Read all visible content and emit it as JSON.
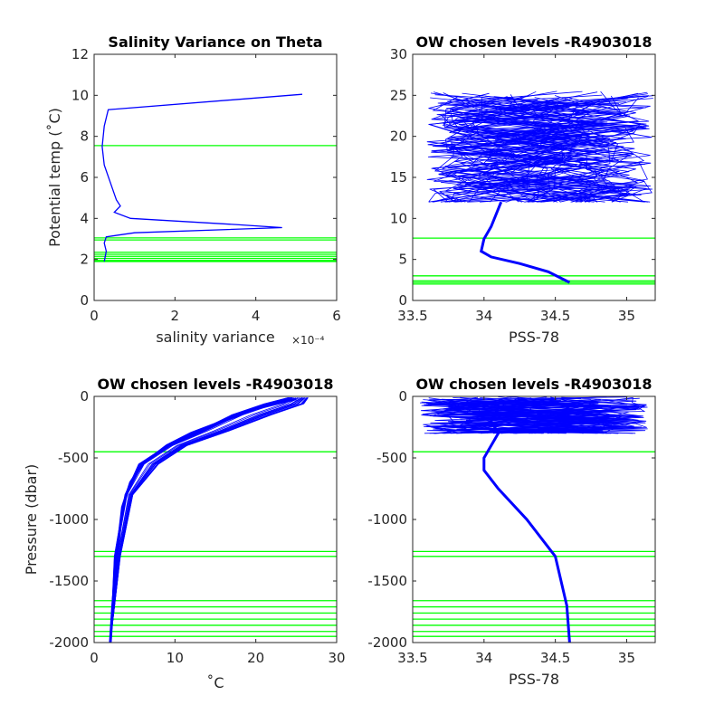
{
  "chart_data": [
    {
      "type": "line",
      "title": "Salinity Variance on Theta",
      "xlabel": "salinity variance",
      "xlabel_exponent": "×10⁻⁴",
      "ylabel": "Potential temp (˚C)",
      "xlim": [
        0,
        6
      ],
      "ylim": [
        0,
        12
      ],
      "xticks": [
        "0",
        "2",
        "4",
        "6"
      ],
      "yticks": [
        "0",
        "2",
        "4",
        "6",
        "8",
        "10",
        "12"
      ],
      "series_color": "#0000ff",
      "level_color": "#00ff00",
      "series": [
        {
          "x": [
            5.15,
            0.35,
            0.25,
            0.2,
            0.25,
            0.55,
            0.65,
            0.5,
            0.9,
            3.5,
            4.65,
            1.0,
            0.3,
            0.25,
            0.3,
            0.25
          ],
          "y": [
            10.05,
            9.3,
            8.5,
            7.5,
            6.6,
            4.9,
            4.6,
            4.3,
            4.0,
            3.7,
            3.55,
            3.3,
            3.1,
            2.8,
            2.4,
            1.9
          ]
        }
      ],
      "levels": [
        7.55,
        3.05,
        2.95,
        2.35,
        2.25,
        2.15,
        2.05,
        1.95,
        1.9
      ]
    },
    {
      "type": "line",
      "title": "OW chosen levels -R4903018",
      "xlabel": "PSS-78",
      "ylabel": "",
      "xlim": [
        33.5,
        35.2
      ],
      "ylim": [
        0,
        30
      ],
      "xticks": [
        "33.5",
        "34",
        "34.5",
        "35"
      ],
      "yticks": [
        "0",
        "5",
        "10",
        "15",
        "20",
        "25",
        "30"
      ],
      "series_color": "#0000ff",
      "level_color": "#00ff00",
      "series": [
        {
          "x": [
            34.6,
            34.45,
            34.25,
            34.05,
            33.98,
            34.0,
            34.05,
            34.12
          ],
          "y": [
            2.2,
            3.5,
            4.5,
            5.3,
            6.0,
            7.5,
            9.0,
            12.0
          ]
        }
      ],
      "levels": [
        7.6,
        3.0,
        2.4,
        2.2,
        2.0
      ]
    },
    {
      "type": "line",
      "title": "OW chosen levels -R4903018",
      "xlabel": "˚C",
      "ylabel": "Pressure (dbar)",
      "xlim": [
        0,
        30
      ],
      "ylim": [
        -2000,
        0
      ],
      "xticks": [
        "0",
        "10",
        "20",
        "30"
      ],
      "yticks": [
        "-2000",
        "-1500",
        "-1000",
        "-500",
        "0"
      ],
      "series_color": "#0000ff",
      "level_color": "#00ff00",
      "series": [
        {
          "x": [
            2.0,
            2.3,
            2.8,
            3.5,
            4.5,
            6.0,
            9.0,
            12.0,
            16.0,
            20.0,
            25.0
          ],
          "y": [
            -2000,
            -1700,
            -1300,
            -900,
            -700,
            -550,
            -400,
            -300,
            -200,
            -100,
            -20
          ]
        }
      ],
      "levels": [
        -450,
        -1260,
        -1300,
        -1660,
        -1710,
        -1760,
        -1810,
        -1860,
        -1910,
        -1950
      ]
    },
    {
      "type": "line",
      "title": "OW chosen levels -R4903018",
      "xlabel": "PSS-78",
      "ylabel": "",
      "xlim": [
        33.5,
        35.2
      ],
      "ylim": [
        -2000,
        0
      ],
      "xticks": [
        "33.5",
        "34",
        "34.5",
        "35"
      ],
      "yticks": [
        "-2000",
        "-1500",
        "-1000",
        "-500",
        "0"
      ],
      "series_color": "#0000ff",
      "level_color": "#00ff00",
      "series": [
        {
          "x": [
            34.6,
            34.58,
            34.5,
            34.3,
            34.1,
            34.0,
            34.0,
            34.1,
            34.05,
            34.1
          ],
          "y": [
            -2000,
            -1700,
            -1300,
            -1000,
            -750,
            -600,
            -500,
            -300,
            -200,
            -100
          ]
        }
      ],
      "levels": [
        -450,
        -1260,
        -1300,
        -1660,
        -1710,
        -1760,
        -1810,
        -1860,
        -1910,
        -1950
      ]
    }
  ]
}
